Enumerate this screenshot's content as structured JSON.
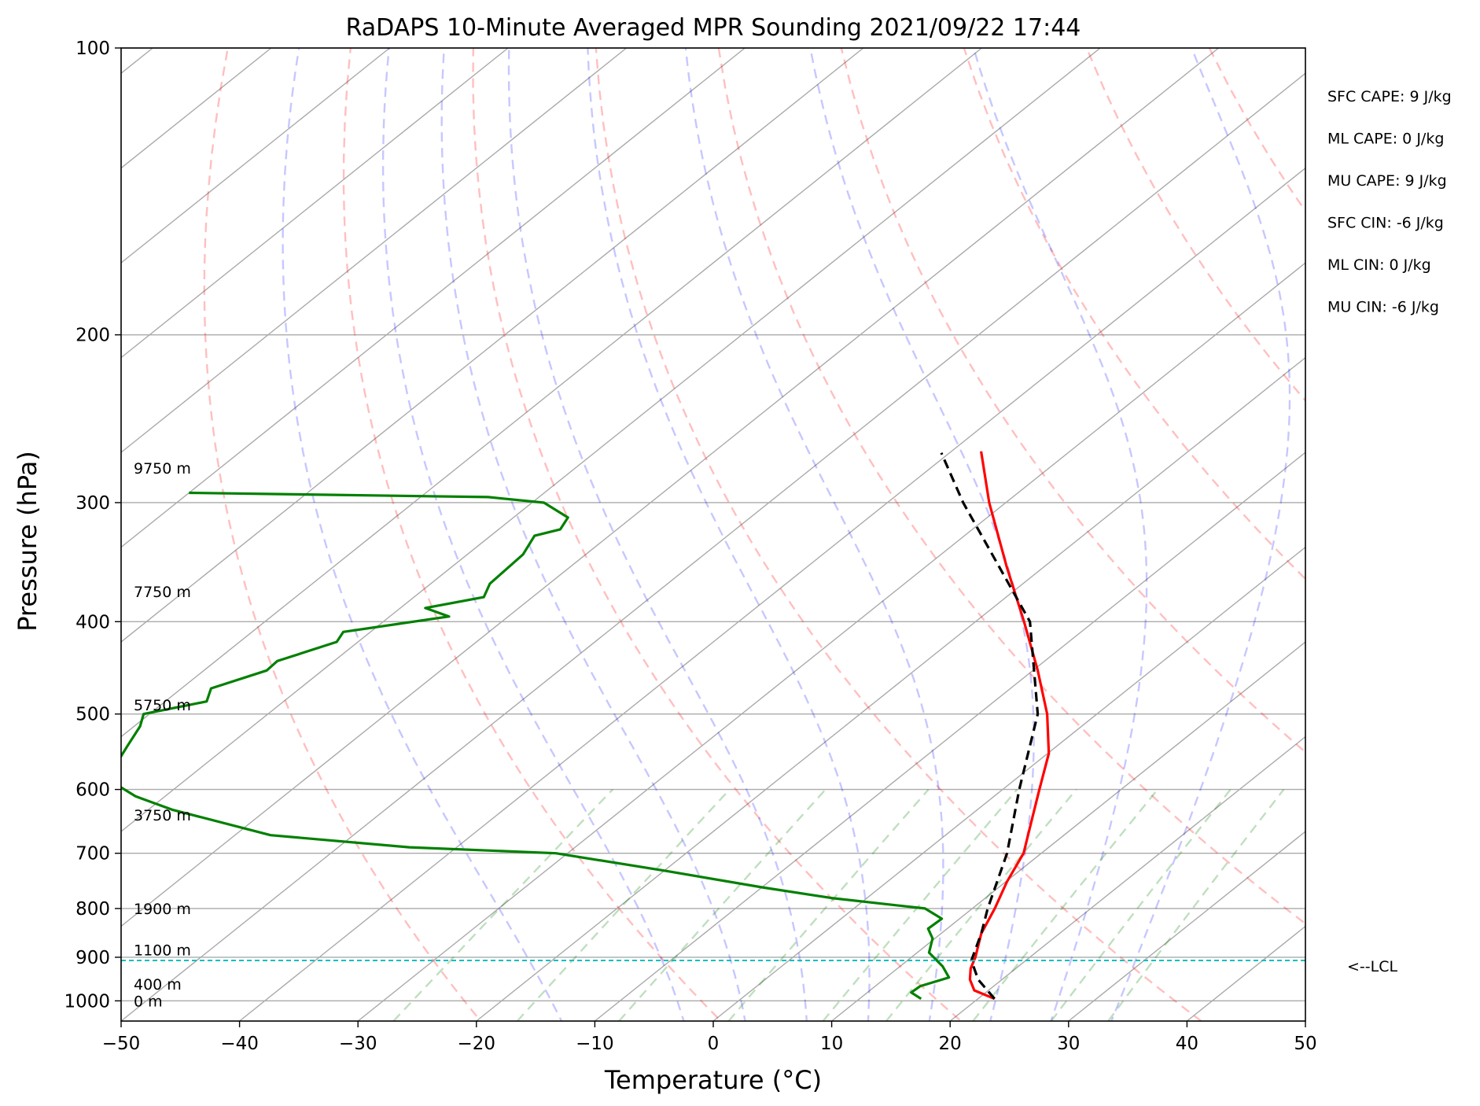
{
  "chart_data": {
    "type": "line",
    "title": "RaDAPS 10-Minute Averaged MPR Sounding 2021/09/22 17:44",
    "xlabel": "Temperature (°C)",
    "ylabel": "Pressure (hPa)",
    "xlim": [
      -50,
      50
    ],
    "ylim": [
      1050,
      100
    ],
    "y_scale": "log",
    "skew": "skew-T",
    "grid": true,
    "x_ticks": [
      "−50",
      "−40",
      "−30",
      "−20",
      "−10",
      "0",
      "10",
      "20",
      "30",
      "40",
      "50"
    ],
    "x_tick_values": [
      -50,
      -40,
      -30,
      -20,
      -10,
      0,
      10,
      20,
      30,
      40,
      50
    ],
    "y_ticks": [
      "100",
      "200",
      "300",
      "400",
      "500",
      "600",
      "700",
      "800",
      "900",
      "1000"
    ],
    "y_tick_values": [
      100,
      200,
      300,
      400,
      500,
      600,
      700,
      800,
      900,
      1000
    ],
    "series": [
      {
        "id": "temperature",
        "color": "#ff0000",
        "points": [
          [
            995,
            21.4
          ],
          [
            975,
            18.8
          ],
          [
            950,
            17.3
          ],
          [
            925,
            16.2
          ],
          [
            900,
            15.4
          ],
          [
            850,
            13.4
          ],
          [
            800,
            11.9
          ],
          [
            750,
            10.1
          ],
          [
            700,
            8.5
          ],
          [
            650,
            5.9
          ],
          [
            600,
            3.1
          ],
          [
            550,
            0.1
          ],
          [
            500,
            -4.2
          ],
          [
            450,
            -9.6
          ],
          [
            400,
            -15.9
          ],
          [
            350,
            -23.2
          ],
          [
            300,
            -31.4
          ],
          [
            265,
            -37.5
          ]
        ]
      },
      {
        "id": "dewpoint",
        "color": "#008000",
        "points": [
          [
            995,
            15.2
          ],
          [
            980,
            13.7
          ],
          [
            965,
            13.8
          ],
          [
            945,
            15.3
          ],
          [
            920,
            13.6
          ],
          [
            890,
            11.0
          ],
          [
            860,
            9.8
          ],
          [
            840,
            8.4
          ],
          [
            820,
            8.5
          ],
          [
            800,
            6.0
          ],
          [
            780,
            -3.0
          ],
          [
            760,
            -10.0
          ],
          [
            730,
            -20.0
          ],
          [
            700,
            -31.0
          ],
          [
            690,
            -44.0
          ],
          [
            670,
            -57.0
          ],
          [
            630,
            -68.0
          ],
          [
            610,
            -72.5
          ],
          [
            595,
            -75.0
          ],
          [
            575,
            -78.0
          ],
          [
            565,
            -77.5
          ],
          [
            540,
            -78.5
          ],
          [
            515,
            -79.5
          ],
          [
            500,
            -80.5
          ],
          [
            485,
            -76.5
          ],
          [
            470,
            -77.5
          ],
          [
            450,
            -74.7
          ],
          [
            440,
            -74.8
          ],
          [
            420,
            -71.8
          ],
          [
            410,
            -72.3
          ],
          [
            395,
            -65.0
          ],
          [
            387,
            -67.9
          ],
          [
            377,
            -64.1
          ],
          [
            365,
            -65.0
          ],
          [
            340,
            -65.3
          ],
          [
            325,
            -66.3
          ],
          [
            320,
            -64.8
          ],
          [
            311,
            -65.4
          ],
          [
            300,
            -69.0
          ],
          [
            296,
            -74.3
          ],
          [
            293,
            -100.0
          ]
        ]
      },
      {
        "id": "parcel",
        "color": "#000000",
        "style": "dashed",
        "points": [
          [
            995,
            21.4
          ],
          [
            950,
            18.0
          ],
          [
            907,
            15.4
          ],
          [
            850,
            13.4
          ],
          [
            800,
            11.3
          ],
          [
            700,
            7.1
          ],
          [
            600,
            1.4
          ],
          [
            500,
            -5.0
          ],
          [
            400,
            -15.4
          ],
          [
            300,
            -33.6
          ],
          [
            266,
            -40.7
          ]
        ]
      }
    ],
    "dry_adiabats_theta_K": [
      250,
      270,
      290,
      310,
      330,
      350,
      370,
      390,
      410,
      430,
      450
    ],
    "moist_adiabats_start_C": [
      -10,
      0,
      5,
      10,
      15,
      20,
      25,
      30,
      35
    ],
    "mixing_ratio_lines_gkg": [
      0.4,
      1,
      2,
      4,
      7,
      10,
      16,
      24,
      32
    ],
    "lcl_pressure_hPa": 907,
    "lcl_label": "<--LCL",
    "height_labels": [
      {
        "label": "9750 m",
        "pressure": 276
      },
      {
        "label": "7750 m",
        "pressure": 372
      },
      {
        "label": "5750 m",
        "pressure": 489
      },
      {
        "label": "3750 m",
        "pressure": 638
      },
      {
        "label": "1900 m",
        "pressure": 800
      },
      {
        "label": "1100 m",
        "pressure": 884
      },
      {
        "label": "400 m",
        "pressure": 960
      },
      {
        "label": "0 m",
        "pressure": 1000
      }
    ],
    "indices": [
      "SFC CAPE: 9 J/kg",
      "ML CAPE: 0 J/kg",
      "MU CAPE: 9 J/kg",
      "SFC CIN: -6 J/kg",
      "ML CIN: 0 J/kg",
      "MU CIN: -6 J/kg"
    ]
  }
}
